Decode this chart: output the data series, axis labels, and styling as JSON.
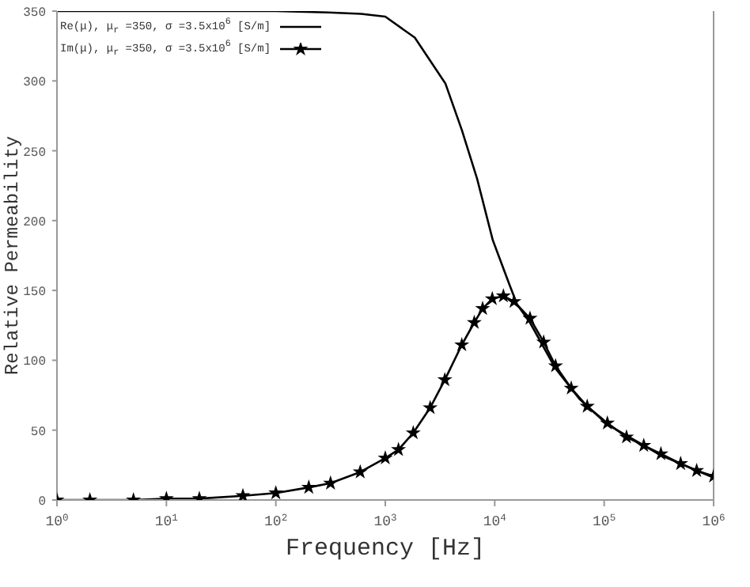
{
  "chart_data": {
    "type": "line",
    "xlabel": "Frequency [Hz]",
    "ylabel": "Relative Permeability",
    "log": "x",
    "grid": false,
    "legend": "top left",
    "xlim": [
      1,
      1000000
    ],
    "xticks": [
      {
        "value": 1,
        "label": "10$^{0}$"
      },
      {
        "value": 10,
        "label": "10$^{1}$"
      },
      {
        "value": 100,
        "label": "10$^{2}$"
      },
      {
        "value": 1000,
        "label": "10$^{3}$"
      },
      {
        "value": 10000,
        "label": "10$^{4}$"
      },
      {
        "value": 100000,
        "label": "10$^{5}$"
      },
      {
        "value": 1000000,
        "label": "10$^{6}$"
      }
    ],
    "ylim": [
      0,
      350
    ],
    "yticks": [
      0,
      50,
      100,
      150,
      200,
      250,
      300,
      350
    ],
    "series": [
      {
        "name": "Re(μ), μ$_{r}$ =350, σ =3.5x10$^{6}$ [S/m]",
        "color": "#000000",
        "marker": "none",
        "line_style": "solid",
        "x": [
          1,
          10,
          100,
          300,
          600,
          1000,
          1860,
          3550,
          5000,
          6900,
          9600,
          13500,
          16000,
          21000,
          36000,
          60000,
          107000,
          330000,
          1000000
        ],
        "values": [
          350,
          350,
          350,
          349,
          348,
          346,
          331,
          298,
          265,
          230,
          186,
          155,
          140,
          127,
          94,
          72,
          54,
          32,
          16
        ]
      },
      {
        "name": "Im(μ), μ$_{r}$ =350, σ =3.5x10$^{6}$ [S/m]",
        "color": "#000000",
        "marker": "star",
        "line_style": "solid",
        "x": [
          1,
          2,
          5,
          10,
          20,
          50,
          100,
          200,
          316,
          590,
          1000,
          1320,
          1800,
          2570,
          3500,
          5000,
          6500,
          7750,
          9500,
          12000,
          15000,
          21000,
          28000,
          36000,
          50000,
          70000,
          107000,
          160000,
          230000,
          330000,
          500000,
          700000,
          1000000
        ],
        "values": [
          0,
          0,
          0,
          1,
          1,
          3,
          5,
          9,
          12,
          20,
          30,
          36,
          48,
          66,
          86,
          111,
          127,
          137,
          144,
          146,
          142,
          130,
          113,
          96,
          80,
          67,
          55,
          45,
          39,
          33,
          26,
          21,
          17
        ]
      }
    ]
  }
}
